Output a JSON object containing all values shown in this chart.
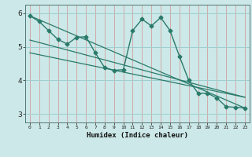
{
  "title": "",
  "xlabel": "Humidex (Indice chaleur)",
  "bg_color": "#cce8e8",
  "line_color": "#2a7a6a",
  "vgrid_color": "#d4a0a0",
  "hgrid_color": "#9ecece",
  "xlim": [
    -0.5,
    23.5
  ],
  "ylim": [
    2.75,
    6.25
  ],
  "xticks": [
    0,
    1,
    2,
    3,
    4,
    5,
    6,
    7,
    8,
    9,
    10,
    11,
    12,
    13,
    14,
    15,
    16,
    17,
    18,
    19,
    20,
    21,
    22,
    23
  ],
  "yticks": [
    3,
    4,
    5,
    6
  ],
  "main_x": [
    0,
    1,
    2,
    3,
    4,
    5,
    6,
    7,
    8,
    9,
    10,
    11,
    12,
    13,
    14,
    15,
    16,
    17,
    18,
    19,
    20,
    21,
    22,
    23
  ],
  "main_y": [
    5.92,
    5.75,
    5.48,
    5.22,
    5.08,
    5.28,
    5.3,
    4.82,
    4.38,
    4.3,
    4.32,
    5.48,
    5.82,
    5.62,
    5.87,
    5.48,
    4.72,
    4.0,
    3.62,
    3.62,
    3.48,
    3.22,
    3.2,
    3.18
  ],
  "line1_x": [
    0,
    23
  ],
  "line1_y": [
    5.92,
    3.18
  ],
  "line2_x": [
    0,
    23
  ],
  "line2_y": [
    5.2,
    3.5
  ],
  "line3_x": [
    0,
    23
  ],
  "line3_y": [
    4.82,
    3.5
  ]
}
